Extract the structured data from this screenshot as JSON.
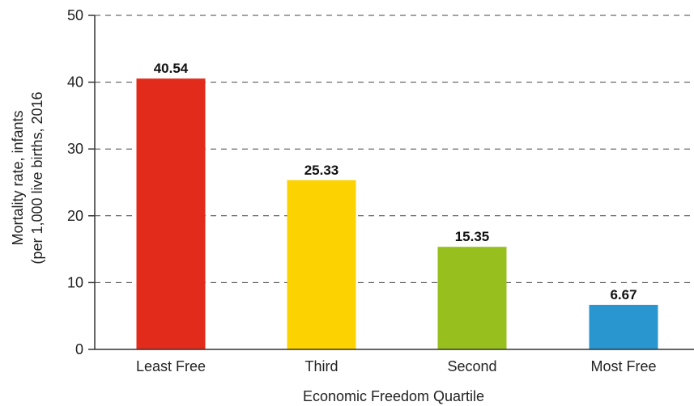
{
  "chart_data": {
    "type": "bar",
    "categories": [
      "Least Free",
      "Third",
      "Second",
      "Most Free"
    ],
    "values": [
      40.54,
      25.33,
      15.35,
      6.67
    ],
    "value_labels": [
      "40.54",
      "25.33",
      "15.35",
      "6.67"
    ],
    "colors": [
      "#e32b1b",
      "#fcd200",
      "#97bf1d",
      "#2a96cf"
    ],
    "xlabel": "Economic Freedom Quartile",
    "ylabel_lines": [
      "Mortality rate, infants",
      "(per 1,000 live births, 2016"
    ],
    "ylim": [
      0,
      50
    ],
    "yticks": [
      "0",
      "10",
      "20",
      "30",
      "40",
      "50"
    ],
    "grid": true,
    "grid_style": "dashed"
  }
}
